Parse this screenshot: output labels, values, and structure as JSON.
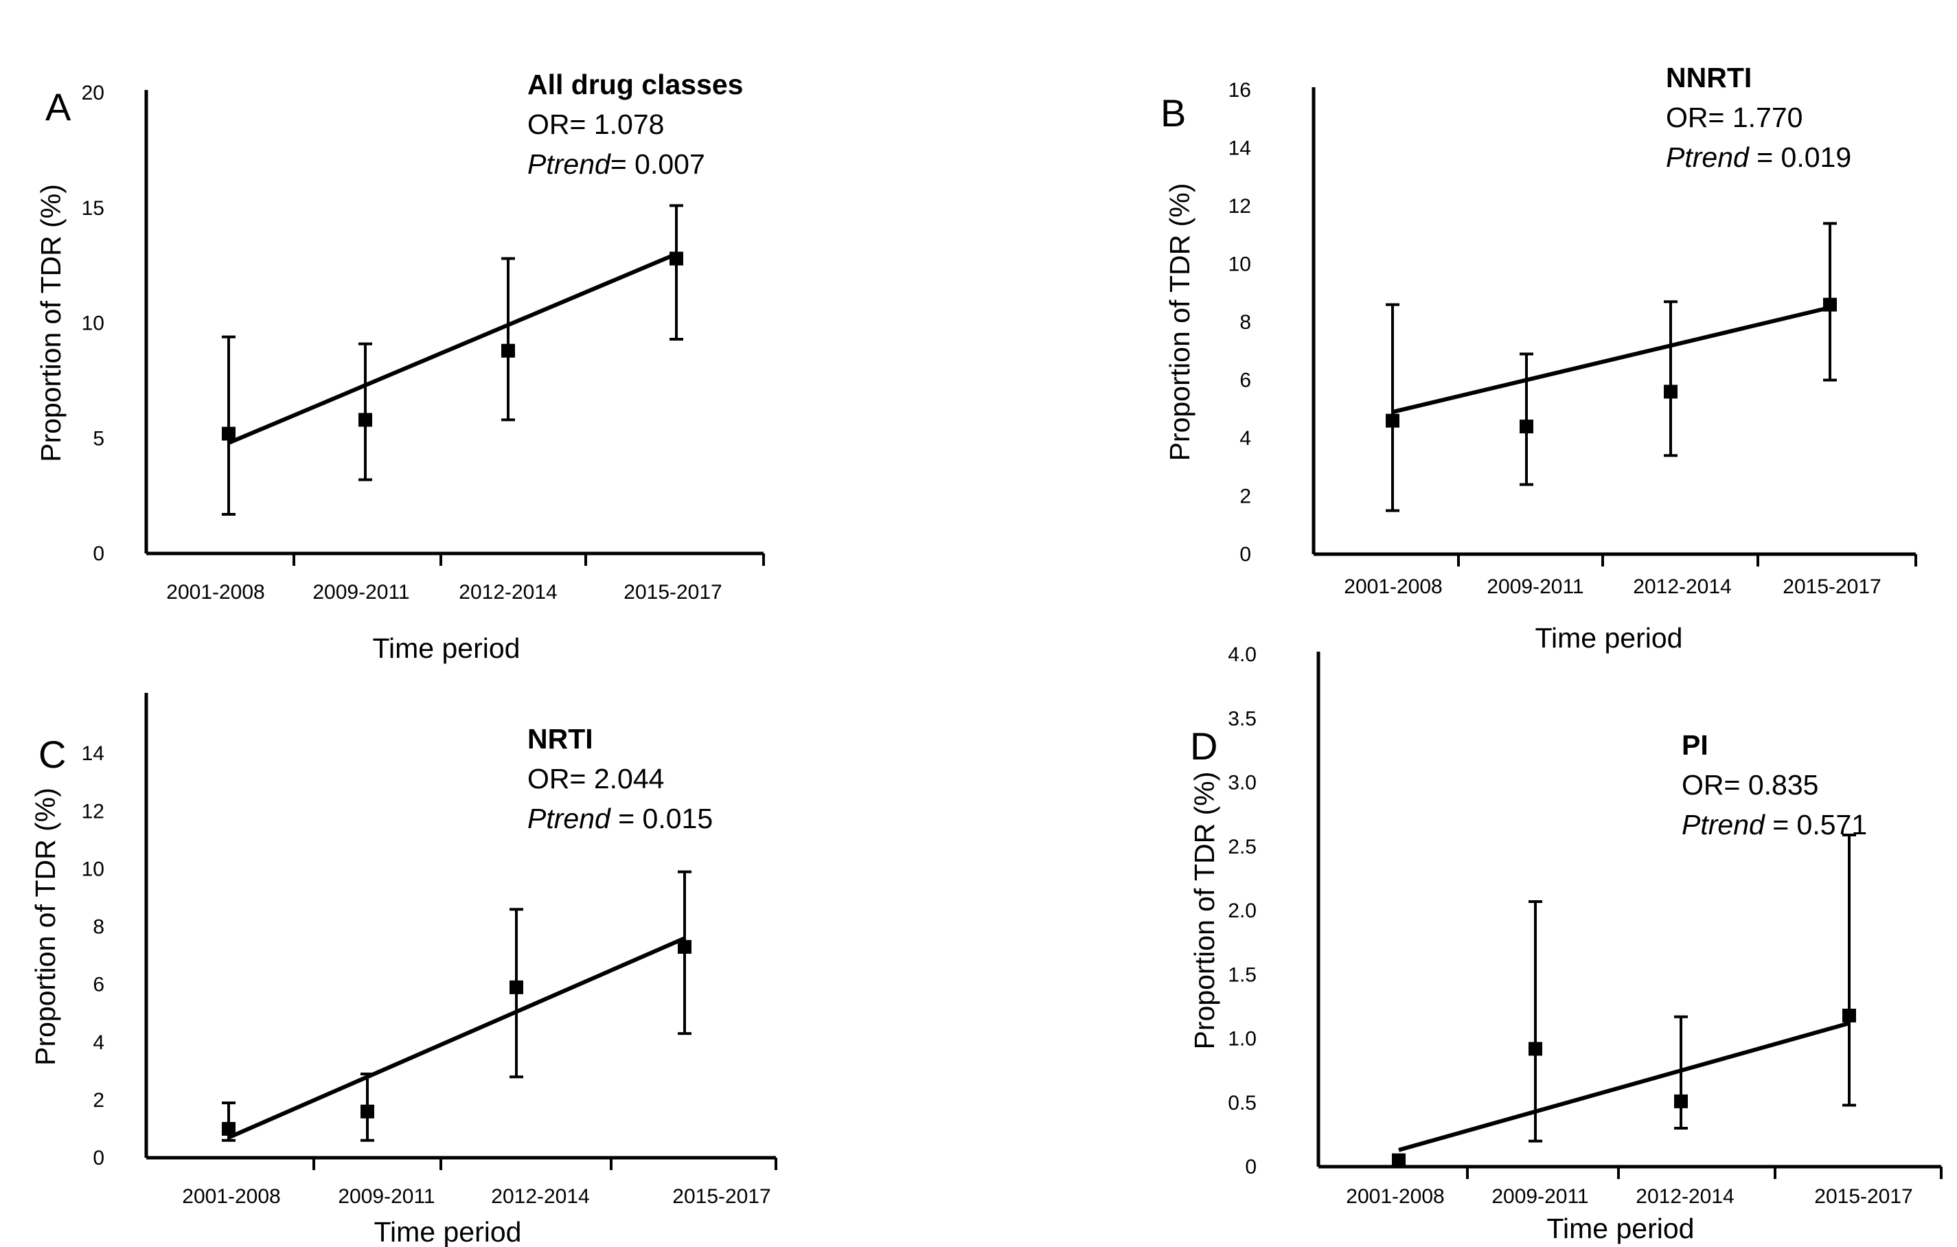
{
  "chart_data": [
    {
      "panel": "A",
      "type": "scatter",
      "title": "All drug classes",
      "stats": {
        "or_text": "OR= 1.078",
        "p_label": "Ptrend",
        "p_value": "= 0.007"
      },
      "xlabel": "Time period",
      "ylabel": "Proportion of TDR (%)",
      "categories": [
        "2001-2008",
        "2009-2011",
        "2012-2014",
        "2015-2017"
      ],
      "yticks": [
        "0",
        "5",
        "10",
        "15",
        "20"
      ],
      "ylim": [
        0,
        20
      ],
      "values": [
        5.2,
        5.8,
        8.8,
        12.8
      ],
      "err_low": [
        1.7,
        3.2,
        5.8,
        9.3
      ],
      "err_high": [
        9.4,
        9.1,
        12.8,
        15.1
      ],
      "trend": [
        4.8,
        13.0
      ]
    },
    {
      "panel": "B",
      "type": "scatter",
      "title": "NNRTI",
      "stats": {
        "or_text": "OR= 1.770",
        "p_label": "Ptrend",
        "p_value": " = 0.019"
      },
      "xlabel": "Time period",
      "ylabel": "Proportion of TDR (%)",
      "categories": [
        "2001-2008",
        "2009-2011",
        "2012-2014",
        "2015-2017"
      ],
      "yticks": [
        "0",
        "2",
        "4",
        "6",
        "8",
        "10",
        "12",
        "14",
        "16"
      ],
      "ylim": [
        0,
        16
      ],
      "values": [
        4.6,
        4.4,
        5.6,
        8.6
      ],
      "err_low": [
        1.5,
        2.4,
        3.4,
        6.0
      ],
      "err_high": [
        8.6,
        6.9,
        8.7,
        11.4
      ],
      "trend": [
        4.9,
        8.5
      ]
    },
    {
      "panel": "C",
      "type": "scatter",
      "title": "NRTI",
      "stats": {
        "or_text": "OR= 2.044",
        "p_label": "Ptrend",
        "p_value": " = 0.015"
      },
      "xlabel": "Time period",
      "ylabel": "Proportion of TDR (%)",
      "categories": [
        "2001-2008",
        "2009-2011",
        "2012-2014",
        "2015-2017"
      ],
      "yticks": [
        "0",
        "2",
        "4",
        "6",
        "8",
        "10",
        "12",
        "14"
      ],
      "ylim": [
        0,
        16
      ],
      "values": [
        1.0,
        1.6,
        5.9,
        7.3
      ],
      "err_low": [
        0.6,
        0.6,
        2.8,
        4.3
      ],
      "err_high": [
        1.9,
        2.9,
        8.6,
        9.9
      ],
      "trend": [
        0.7,
        7.6
      ]
    },
    {
      "panel": "D",
      "type": "scatter",
      "title": "PI",
      "stats": {
        "or_text": "OR= 0.835",
        "p_label": "Ptrend",
        "p_value": " = 0.571"
      },
      "xlabel": "Time period",
      "ylabel": "Proportion of TDR (%)",
      "categories": [
        "2001-2008",
        "2009-2011",
        "2012-2014",
        "2015-2017"
      ],
      "yticks": [
        "0",
        "0.5",
        "1.0",
        "1.5",
        "2.0",
        "2.5",
        "3.0",
        "3.5",
        "4.0"
      ],
      "ylim": [
        0,
        4
      ],
      "values": [
        0.05,
        0.92,
        0.51,
        1.18
      ],
      "err_low": [
        0.0,
        0.2,
        0.3,
        0.48
      ],
      "err_high": [
        0.05,
        2.07,
        1.17,
        2.59
      ],
      "trend": [
        0.13,
        1.12
      ]
    }
  ]
}
